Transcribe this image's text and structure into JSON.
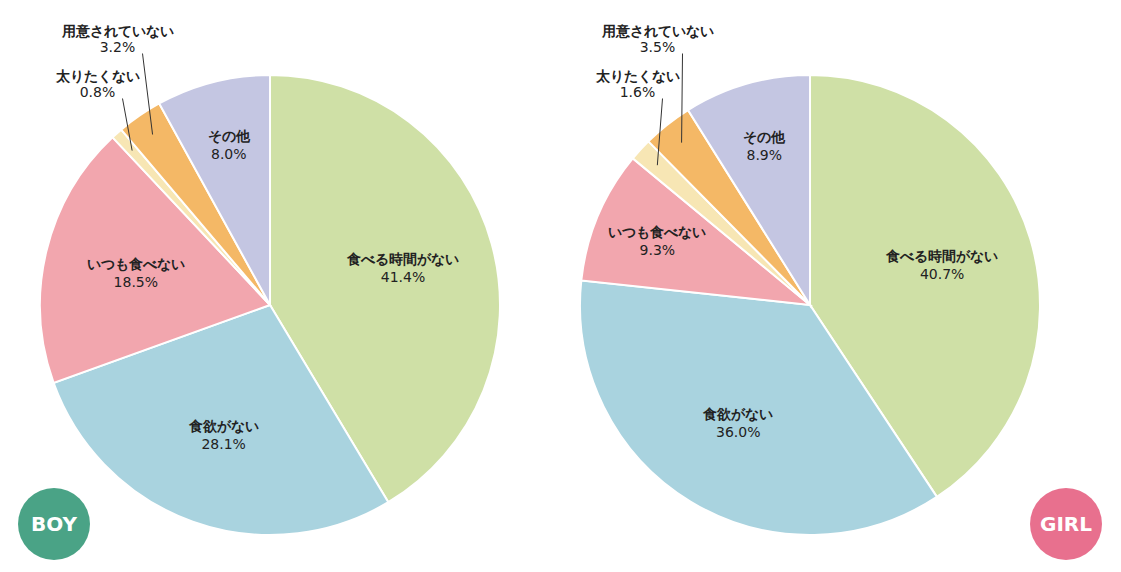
{
  "chart_data": [
    {
      "type": "pie",
      "title": "BOY",
      "categories": [
        "食べる時間がない",
        "食欲がない",
        "いつも食べない",
        "太りたくない",
        "用意されていない",
        "その他"
      ],
      "values": [
        41.4,
        28.1,
        18.5,
        0.8,
        3.2,
        8.0
      ],
      "value_labels": [
        "41.4%",
        "28.1%",
        "18.5%",
        "0.8%",
        "3.2%",
        "8.0%"
      ],
      "colors": [
        "#cfe0a6",
        "#a9d3df",
        "#f2a6ae",
        "#f7e6b4",
        "#f4b866",
        "#c4c6e2"
      ],
      "data_labels": true
    },
    {
      "type": "pie",
      "title": "GIRL",
      "categories": [
        "食べる時間がない",
        "食欲がない",
        "いつも食べない",
        "太りたくない",
        "用意されていない",
        "その他"
      ],
      "values": [
        40.7,
        36.0,
        9.3,
        1.6,
        3.5,
        8.9
      ],
      "value_labels": [
        "40.7%",
        "36.0%",
        "9.3%",
        "1.6%",
        "3.5%",
        "8.9%"
      ],
      "colors": [
        "#cfe0a6",
        "#a9d3df",
        "#f2a6ae",
        "#f7e6b4",
        "#f4b866",
        "#c4c6e2"
      ],
      "data_labels": true
    }
  ]
}
